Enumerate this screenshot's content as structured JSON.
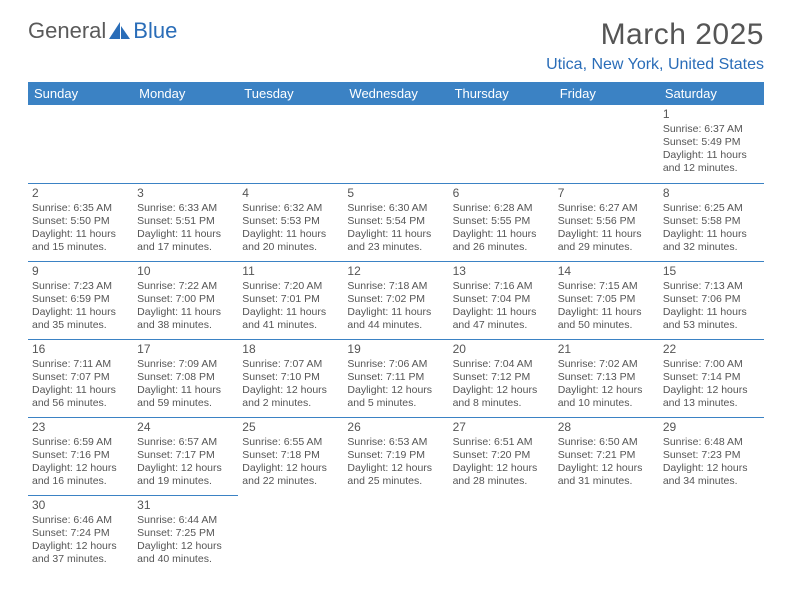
{
  "logo": {
    "part1": "General",
    "part2": "Blue"
  },
  "title": "March 2025",
  "location": "Utica, New York, United States",
  "headers": [
    "Sunday",
    "Monday",
    "Tuesday",
    "Wednesday",
    "Thursday",
    "Friday",
    "Saturday"
  ],
  "header_bg": "#3b82c4",
  "header_fg": "#ffffff",
  "border_color": "#3b82c4",
  "text_color": "#555555",
  "accent_color": "#2a6db8",
  "weeks": [
    [
      null,
      null,
      null,
      null,
      null,
      null,
      {
        "d": "1",
        "sr": "6:37 AM",
        "ss": "5:49 PM",
        "dl1": "11 hours",
        "dl2": "and 12 minutes."
      }
    ],
    [
      {
        "d": "2",
        "sr": "6:35 AM",
        "ss": "5:50 PM",
        "dl1": "11 hours",
        "dl2": "and 15 minutes."
      },
      {
        "d": "3",
        "sr": "6:33 AM",
        "ss": "5:51 PM",
        "dl1": "11 hours",
        "dl2": "and 17 minutes."
      },
      {
        "d": "4",
        "sr": "6:32 AM",
        "ss": "5:53 PM",
        "dl1": "11 hours",
        "dl2": "and 20 minutes."
      },
      {
        "d": "5",
        "sr": "6:30 AM",
        "ss": "5:54 PM",
        "dl1": "11 hours",
        "dl2": "and 23 minutes."
      },
      {
        "d": "6",
        "sr": "6:28 AM",
        "ss": "5:55 PM",
        "dl1": "11 hours",
        "dl2": "and 26 minutes."
      },
      {
        "d": "7",
        "sr": "6:27 AM",
        "ss": "5:56 PM",
        "dl1": "11 hours",
        "dl2": "and 29 minutes."
      },
      {
        "d": "8",
        "sr": "6:25 AM",
        "ss": "5:58 PM",
        "dl1": "11 hours",
        "dl2": "and 32 minutes."
      }
    ],
    [
      {
        "d": "9",
        "sr": "7:23 AM",
        "ss": "6:59 PM",
        "dl1": "11 hours",
        "dl2": "and 35 minutes."
      },
      {
        "d": "10",
        "sr": "7:22 AM",
        "ss": "7:00 PM",
        "dl1": "11 hours",
        "dl2": "and 38 minutes."
      },
      {
        "d": "11",
        "sr": "7:20 AM",
        "ss": "7:01 PM",
        "dl1": "11 hours",
        "dl2": "and 41 minutes."
      },
      {
        "d": "12",
        "sr": "7:18 AM",
        "ss": "7:02 PM",
        "dl1": "11 hours",
        "dl2": "and 44 minutes."
      },
      {
        "d": "13",
        "sr": "7:16 AM",
        "ss": "7:04 PM",
        "dl1": "11 hours",
        "dl2": "and 47 minutes."
      },
      {
        "d": "14",
        "sr": "7:15 AM",
        "ss": "7:05 PM",
        "dl1": "11 hours",
        "dl2": "and 50 minutes."
      },
      {
        "d": "15",
        "sr": "7:13 AM",
        "ss": "7:06 PM",
        "dl1": "11 hours",
        "dl2": "and 53 minutes."
      }
    ],
    [
      {
        "d": "16",
        "sr": "7:11 AM",
        "ss": "7:07 PM",
        "dl1": "11 hours",
        "dl2": "and 56 minutes."
      },
      {
        "d": "17",
        "sr": "7:09 AM",
        "ss": "7:08 PM",
        "dl1": "11 hours",
        "dl2": "and 59 minutes."
      },
      {
        "d": "18",
        "sr": "7:07 AM",
        "ss": "7:10 PM",
        "dl1": "12 hours",
        "dl2": "and 2 minutes."
      },
      {
        "d": "19",
        "sr": "7:06 AM",
        "ss": "7:11 PM",
        "dl1": "12 hours",
        "dl2": "and 5 minutes."
      },
      {
        "d": "20",
        "sr": "7:04 AM",
        "ss": "7:12 PM",
        "dl1": "12 hours",
        "dl2": "and 8 minutes."
      },
      {
        "d": "21",
        "sr": "7:02 AM",
        "ss": "7:13 PM",
        "dl1": "12 hours",
        "dl2": "and 10 minutes."
      },
      {
        "d": "22",
        "sr": "7:00 AM",
        "ss": "7:14 PM",
        "dl1": "12 hours",
        "dl2": "and 13 minutes."
      }
    ],
    [
      {
        "d": "23",
        "sr": "6:59 AM",
        "ss": "7:16 PM",
        "dl1": "12 hours",
        "dl2": "and 16 minutes."
      },
      {
        "d": "24",
        "sr": "6:57 AM",
        "ss": "7:17 PM",
        "dl1": "12 hours",
        "dl2": "and 19 minutes."
      },
      {
        "d": "25",
        "sr": "6:55 AM",
        "ss": "7:18 PM",
        "dl1": "12 hours",
        "dl2": "and 22 minutes."
      },
      {
        "d": "26",
        "sr": "6:53 AM",
        "ss": "7:19 PM",
        "dl1": "12 hours",
        "dl2": "and 25 minutes."
      },
      {
        "d": "27",
        "sr": "6:51 AM",
        "ss": "7:20 PM",
        "dl1": "12 hours",
        "dl2": "and 28 minutes."
      },
      {
        "d": "28",
        "sr": "6:50 AM",
        "ss": "7:21 PM",
        "dl1": "12 hours",
        "dl2": "and 31 minutes."
      },
      {
        "d": "29",
        "sr": "6:48 AM",
        "ss": "7:23 PM",
        "dl1": "12 hours",
        "dl2": "and 34 minutes."
      }
    ],
    [
      {
        "d": "30",
        "sr": "6:46 AM",
        "ss": "7:24 PM",
        "dl1": "12 hours",
        "dl2": "and 37 minutes."
      },
      {
        "d": "31",
        "sr": "6:44 AM",
        "ss": "7:25 PM",
        "dl1": "12 hours",
        "dl2": "and 40 minutes."
      },
      null,
      null,
      null,
      null,
      null
    ]
  ],
  "labels": {
    "sunrise": "Sunrise: ",
    "sunset": "Sunset: ",
    "daylight": "Daylight: "
  }
}
